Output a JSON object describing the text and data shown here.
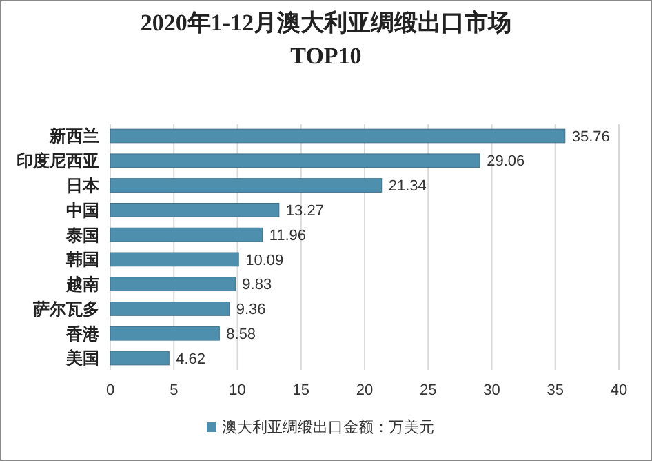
{
  "chart_data": {
    "type": "bar",
    "orientation": "horizontal",
    "title": "2020年1-12月澳大利亚绸缎出口市场\nTOP10",
    "categories": [
      "新西兰",
      "印度尼西亚",
      "日本",
      "中国",
      "泰国",
      "韩国",
      "越南",
      "萨尔瓦多",
      "香港",
      "美国"
    ],
    "series": [
      {
        "name": "澳大利亚绸缎出口金额：万美元",
        "color": "#4f8fae",
        "values": [
          35.76,
          29.06,
          21.34,
          13.27,
          11.96,
          10.09,
          9.83,
          9.36,
          8.58,
          4.62
        ]
      }
    ],
    "xlim": [
      0,
      40
    ],
    "xticks": [
      0,
      5,
      10,
      15,
      20,
      25,
      30,
      35,
      40
    ],
    "grid": "x",
    "data_labels": true,
    "legend": "bottom"
  }
}
